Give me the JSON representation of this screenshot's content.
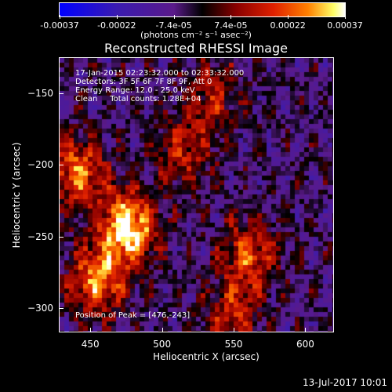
{
  "colorbar": {
    "ticks": [
      "-0.00037",
      "-0.00022",
      "-7.4e-05",
      "7.4e-05",
      "0.00022",
      "0.00037"
    ],
    "units_line": "(photons cm⁻² s⁻¹ asec⁻²)"
  },
  "chart_data": {
    "type": "heatmap",
    "title": "Reconstructed RHESSI Image",
    "xlabel": "Heliocentric X (arcsec)",
    "ylabel": "Heliocentric Y (arcsec)",
    "xlim": [
      428,
      620
    ],
    "ylim": [
      -317,
      -125
    ],
    "x_ticks": [
      "450",
      "500",
      "550",
      "600"
    ],
    "y_ticks": [
      "-150",
      "-200",
      "-250",
      "-300"
    ],
    "color_range": [
      -0.00037,
      0.00037
    ],
    "sources": [
      {
        "x": 476,
        "y": -243,
        "rel": 1.0
      },
      {
        "x": 440,
        "y": -205,
        "rel": 0.7
      },
      {
        "x": 455,
        "y": -280,
        "rel": 0.75
      },
      {
        "x": 560,
        "y": -262,
        "rel": 0.6
      },
      {
        "x": 548,
        "y": -305,
        "rel": 0.45
      },
      {
        "x": 515,
        "y": -190,
        "rel": 0.45
      },
      {
        "x": 535,
        "y": -150,
        "rel": 0.4
      }
    ],
    "annotations": {
      "time": "17-Jan-2015 02:23:32.000 to 02:33:32.000",
      "detectors": "Detectors: 3F 5F 6F 7F 8F 9F, Att 0",
      "energy": "Energy Range: 12.0 - 25.0 keV",
      "clean": "Clean     Total counts: 1.28E+04",
      "peak": "Position of Peak = [476,-243]"
    }
  },
  "footer": {
    "date": "13-Jul-2017 10:01"
  }
}
